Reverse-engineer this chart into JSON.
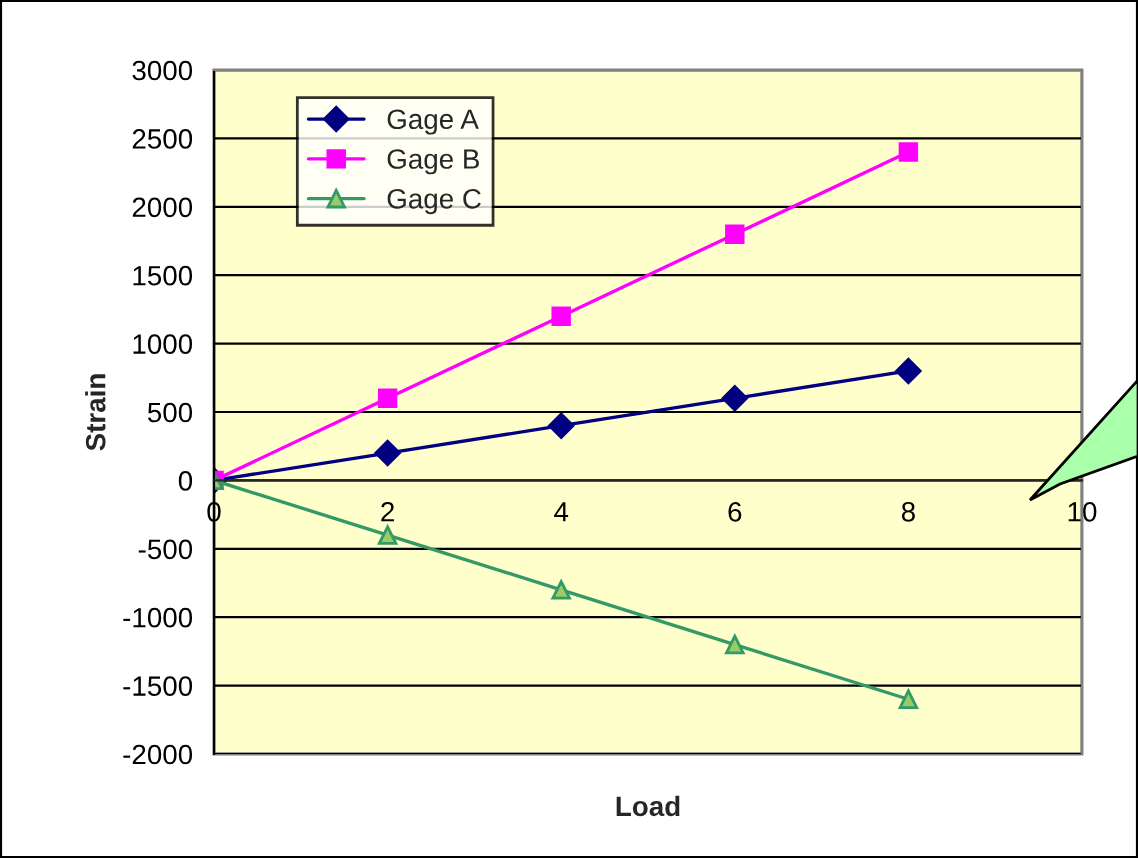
{
  "chart_data": {
    "type": "line",
    "xlabel": "Load",
    "ylabel": "Strain",
    "x": [
      0,
      2,
      4,
      6,
      8
    ],
    "series": [
      {
        "name": "Gage A",
        "color": "#000080",
        "marker": "diamond",
        "values": [
          0,
          200,
          400,
          600,
          800
        ]
      },
      {
        "name": "Gage B",
        "color": "#ff00ff",
        "marker": "square",
        "values": [
          0,
          600,
          1200,
          1800,
          2400
        ]
      },
      {
        "name": "Gage C",
        "color": "#339966",
        "marker": "triangle",
        "values": [
          0,
          -400,
          -800,
          -1200,
          -1600
        ]
      }
    ],
    "xlim": [
      0,
      10
    ],
    "xticks": [
      0,
      2,
      4,
      6,
      8,
      10
    ],
    "ylim": [
      -2000,
      3000
    ],
    "yticks": [
      -2000,
      -1500,
      -1000,
      -500,
      0,
      500,
      1000,
      1500,
      2000,
      2500,
      3000
    ],
    "grid": "y",
    "legend": "top left",
    "line_style": "solid"
  }
}
